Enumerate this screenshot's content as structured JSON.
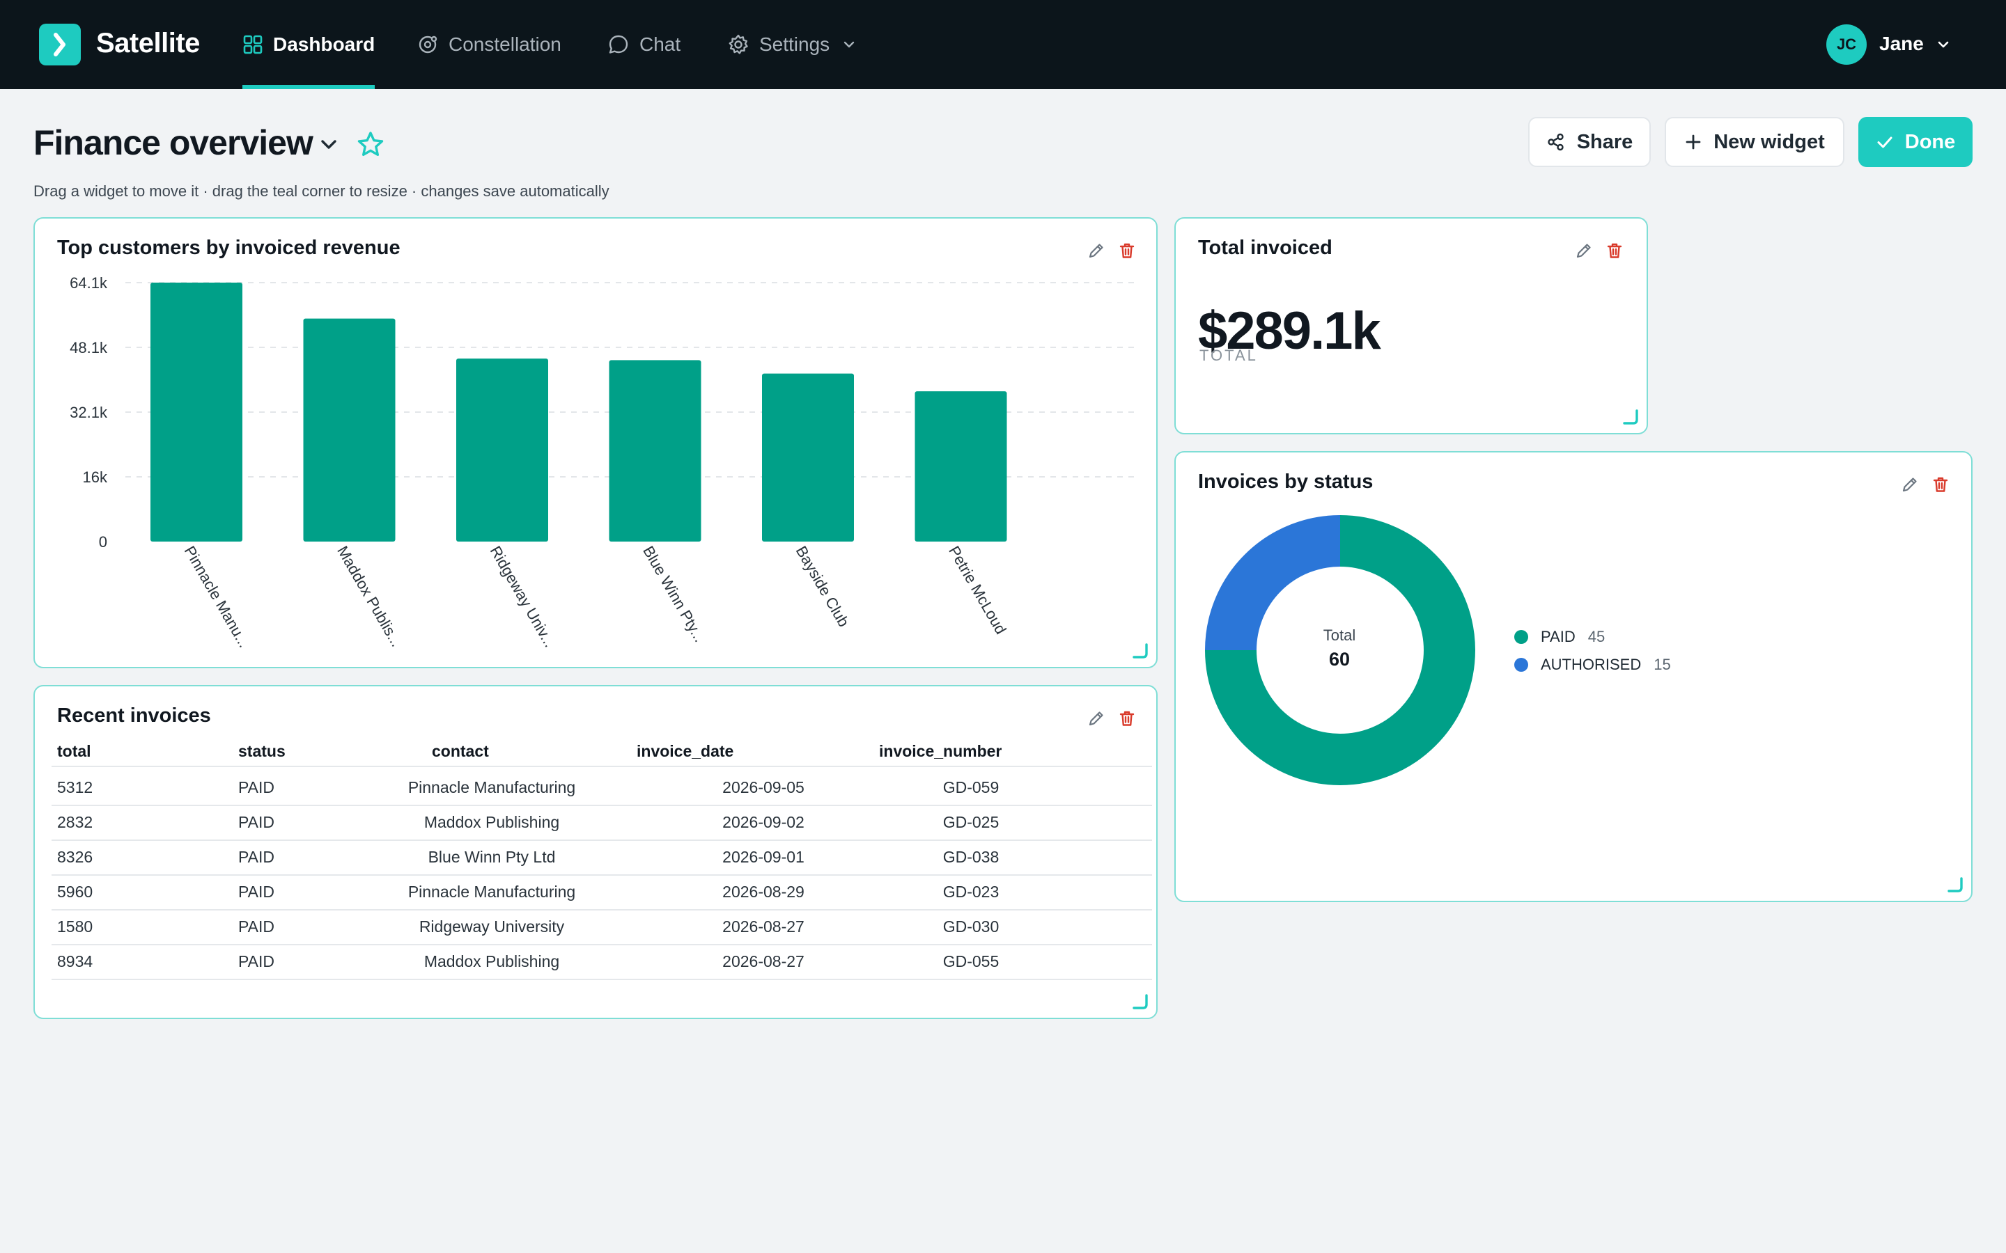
{
  "app": {
    "name": "Satellite"
  },
  "nav": {
    "items": [
      {
        "label": "Dashboard",
        "icon": "grid-icon",
        "active": true
      },
      {
        "label": "Constellation",
        "icon": "orbit-icon"
      },
      {
        "label": "Chat",
        "icon": "chat-icon"
      },
      {
        "label": "Settings",
        "icon": "gear-icon"
      }
    ],
    "user": {
      "initials": "JC",
      "name": "Jane"
    }
  },
  "page": {
    "title": "Finance overview",
    "hint": "Drag a widget to move it · drag the teal corner to resize · changes save automatically",
    "buttons": {
      "share": "Share",
      "new_widget": "New widget",
      "done": "Done"
    }
  },
  "colors": {
    "accent": "#1ecbc0",
    "bar": "#00a088",
    "paid": "#00a088",
    "authorised": "#2b76d8",
    "nav_bg": "#0c151b"
  },
  "widgets": {
    "top_customers": {
      "title": "Top customers by invoiced revenue"
    },
    "total_invoiced": {
      "title": "Total invoiced",
      "value": "$289.1k",
      "label": "TOTAL"
    },
    "invoices_by_status": {
      "title": "Invoices by status",
      "center_label": "Total",
      "center_value": "60",
      "legend": [
        {
          "label": "PAID",
          "count": "45"
        },
        {
          "label": "AUTHORISED",
          "count": "15"
        }
      ]
    },
    "recent_invoices": {
      "title": "Recent invoices",
      "columns": [
        "total",
        "status",
        "contact",
        "invoice_date",
        "invoice_number"
      ],
      "rows": [
        [
          "5312",
          "PAID",
          "Pinnacle Manufacturing",
          "2026-09-05",
          "GD-059"
        ],
        [
          "2832",
          "PAID",
          "Maddox Publishing",
          "2026-09-02",
          "GD-025"
        ],
        [
          "8326",
          "PAID",
          "Blue Winn Pty Ltd",
          "2026-09-01",
          "GD-038"
        ],
        [
          "5960",
          "PAID",
          "Pinnacle Manufacturing",
          "2026-08-29",
          "GD-023"
        ],
        [
          "1580",
          "PAID",
          "Ridgeway University",
          "2026-08-27",
          "GD-030"
        ],
        [
          "8934",
          "PAID",
          "Maddox Publishing",
          "2026-08-27",
          "GD-055"
        ]
      ]
    }
  },
  "chart_data": [
    {
      "type": "bar",
      "title": "Top customers by invoiced revenue",
      "categories": [
        "Pinnacle Manu...",
        "Maddox Publis...",
        "Ridgeway Univ...",
        "Blue Winn Pty...",
        "Bayside Club",
        "Petrie McLoud"
      ],
      "values": [
        64100,
        55200,
        45300,
        44900,
        41600,
        37200
      ],
      "ytick_labels": [
        "0",
        "16k",
        "32.1k",
        "48.1k",
        "64.1k"
      ],
      "yticks": [
        0,
        16025,
        32050,
        48075,
        64100
      ],
      "ylim": [
        0,
        64100
      ],
      "grid": true
    },
    {
      "type": "pie",
      "title": "Invoices by status",
      "labels": [
        "PAID",
        "AUTHORISED"
      ],
      "values": [
        45,
        15
      ],
      "donut": true
    }
  ]
}
